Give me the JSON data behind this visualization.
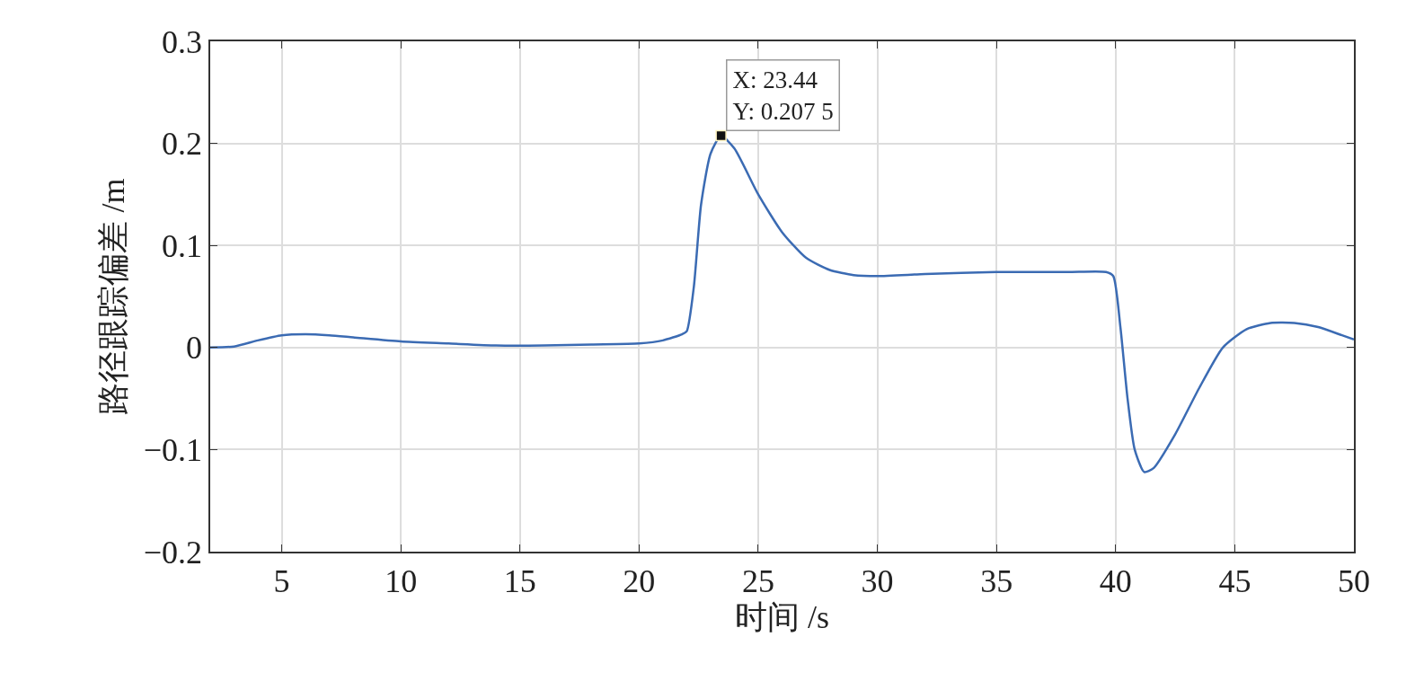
{
  "chart_data": {
    "type": "line",
    "xlabel": "时间 /s",
    "ylabel": "路径跟踪偏差 /m",
    "xlim": [
      2,
      50
    ],
    "ylim": [
      -0.2,
      0.3
    ],
    "xticks": [
      5,
      10,
      15,
      20,
      25,
      30,
      35,
      40,
      45,
      50
    ],
    "yticks": [
      {
        "value": -0.2,
        "label": "−0.2"
      },
      {
        "value": -0.1,
        "label": "−0.1"
      },
      0,
      0.1,
      0.2,
      0.3
    ],
    "grid": true,
    "marker": "none",
    "line_style": "solid",
    "annotations": [
      {
        "text": "X: 23.44\nY: 0.207 5",
        "x": 23.44,
        "y": 0.2075
      }
    ],
    "series": [
      {
        "color": "#3b6bb3",
        "x": [
          2,
          3,
          4,
          5,
          6,
          7,
          8,
          10,
          12,
          14,
          16,
          18,
          20,
          21,
          21.8,
          22,
          22.3,
          22.6,
          23,
          23.44,
          24,
          25,
          26,
          27,
          28,
          29,
          30,
          32,
          35,
          38,
          39.6,
          39.9,
          40.2,
          40.5,
          40.8,
          41.2,
          41.6,
          42.5,
          43.5,
          44.5,
          45.5,
          46.5,
          47.5,
          48.5,
          49.5,
          50
        ],
        "values": [
          0,
          0.001,
          0.007,
          0.012,
          0.013,
          0.012,
          0.01,
          0.006,
          0.004,
          0.002,
          0.002,
          0.003,
          0.004,
          0.007,
          0.013,
          0.016,
          0.06,
          0.14,
          0.19,
          0.2075,
          0.195,
          0.15,
          0.113,
          0.088,
          0.076,
          0.071,
          0.07,
          0.072,
          0.074,
          0.074,
          0.074,
          0.07,
          0.02,
          -0.05,
          -0.1,
          -0.122,
          -0.118,
          -0.085,
          -0.04,
          0,
          0.018,
          0.024,
          0.024,
          0.02,
          0.012,
          0.008
        ]
      }
    ]
  }
}
